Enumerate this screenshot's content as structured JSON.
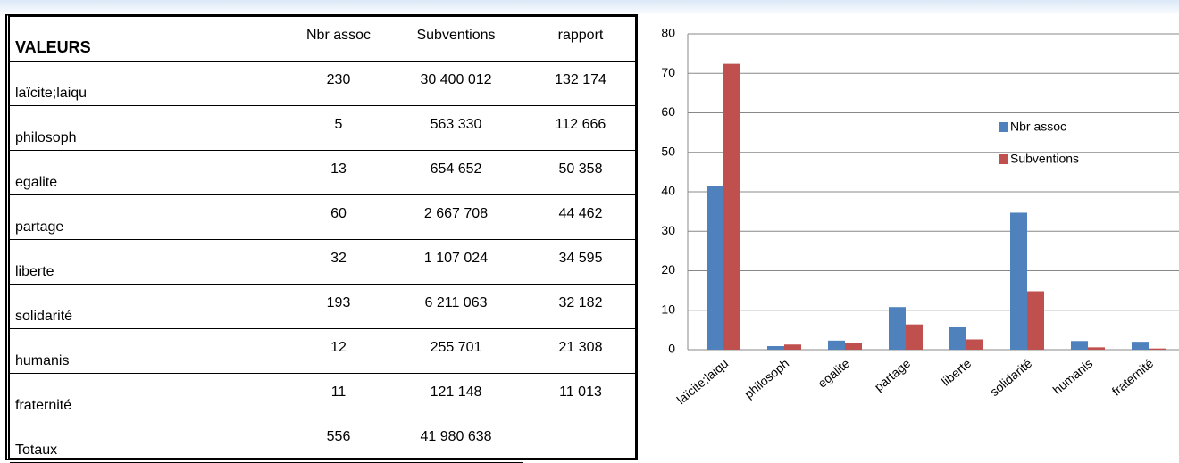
{
  "table": {
    "header": [
      "VALEURS",
      "Nbr assoc",
      "Subventions",
      "rapport"
    ],
    "rows": [
      [
        "laïcite;laiqu",
        "230",
        "30 400 012",
        "132 174"
      ],
      [
        "philosoph",
        "5",
        "563 330",
        "112 666"
      ],
      [
        "egalite",
        "13",
        "654 652",
        "50 358"
      ],
      [
        "partage",
        "60",
        "2 667 708",
        "44 462"
      ],
      [
        "liberte",
        "32",
        "1 107 024",
        "34 595"
      ],
      [
        "solidarité",
        "193",
        "6 211 063",
        "32 182"
      ],
      [
        "humanis",
        "12",
        "255 701",
        "21 308"
      ],
      [
        "fraternité",
        "11",
        "121 148",
        "11 013"
      ],
      [
        "Totaux",
        "556",
        "41 980 638"
      ]
    ]
  },
  "chart_data": {
    "type": "bar",
    "categories": [
      "laïcite;laiqu",
      "philosoph",
      "egalite",
      "partage",
      "liberte",
      "solidarité",
      "humanis",
      "fraternité"
    ],
    "series": [
      {
        "name": "Nbr assoc",
        "color": "#4f81bd",
        "values": [
          41.4,
          0.9,
          2.3,
          10.8,
          5.8,
          34.7,
          2.2,
          2.0
        ]
      },
      {
        "name": "Subventions",
        "color": "#c0504d",
        "values": [
          72.4,
          1.3,
          1.6,
          6.4,
          2.6,
          14.8,
          0.6,
          0.3
        ]
      }
    ],
    "ylim": [
      0,
      80
    ],
    "yticks": [
      0,
      10,
      20,
      30,
      40,
      50,
      60,
      70,
      80
    ],
    "grid": true
  }
}
